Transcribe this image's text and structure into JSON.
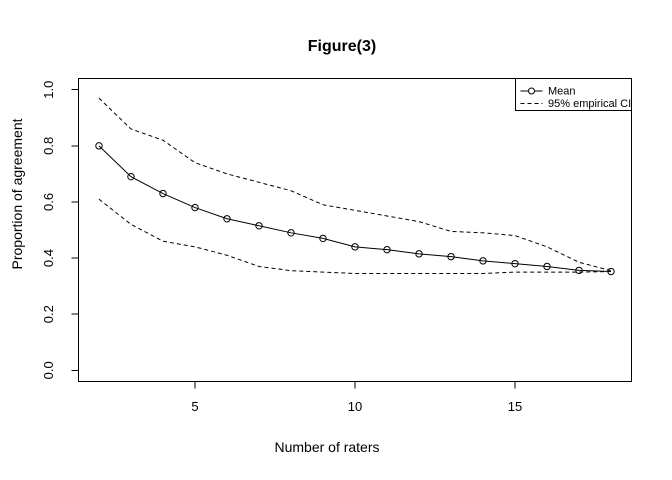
{
  "chart_data": {
    "type": "line",
    "title": "Figure(3)",
    "xlabel": "Number of raters",
    "ylabel": "Proportion of agreement",
    "x": [
      2,
      3,
      4,
      5,
      6,
      7,
      8,
      9,
      10,
      11,
      12,
      13,
      14,
      15,
      16,
      17,
      18
    ],
    "series": [
      {
        "name": "Mean",
        "style": "solid",
        "marker": "circle",
        "values": [
          0.8,
          0.69,
          0.63,
          0.58,
          0.54,
          0.515,
          0.49,
          0.47,
          0.44,
          0.43,
          0.415,
          0.405,
          0.39,
          0.38,
          0.37,
          0.356,
          0.352
        ]
      },
      {
        "name": "95% empirical CI upper",
        "style": "dashed",
        "marker": "none",
        "values": [
          0.97,
          0.86,
          0.82,
          0.74,
          0.7,
          0.67,
          0.64,
          0.59,
          0.57,
          0.55,
          0.53,
          0.495,
          0.49,
          0.48,
          0.44,
          0.385,
          0.355
        ]
      },
      {
        "name": "95% empirical CI lower",
        "style": "dashed",
        "marker": "none",
        "values": [
          0.61,
          0.52,
          0.46,
          0.44,
          0.41,
          0.37,
          0.355,
          0.35,
          0.345,
          0.345,
          0.345,
          0.345,
          0.345,
          0.35,
          0.35,
          0.35,
          0.352
        ]
      }
    ],
    "legend_entries": [
      "Mean",
      "95% empirical CI"
    ],
    "legend_position": "topright",
    "xticks": [
      5,
      10,
      15
    ],
    "xtick_labels": [
      "5",
      "10",
      "15"
    ],
    "yticks": [
      0,
      0.2,
      0.4,
      0.6,
      0.8,
      1.0
    ],
    "ytick_labels": [
      "0.0",
      "0.2",
      "0.4",
      "0.6",
      "0.8",
      "1.0"
    ],
    "xlim": [
      1.36,
      18.64
    ],
    "ylim": [
      -0.04,
      1.04
    ],
    "grid": false,
    "colors": {
      "foreground": "#000000",
      "background": "#ffffff"
    }
  }
}
